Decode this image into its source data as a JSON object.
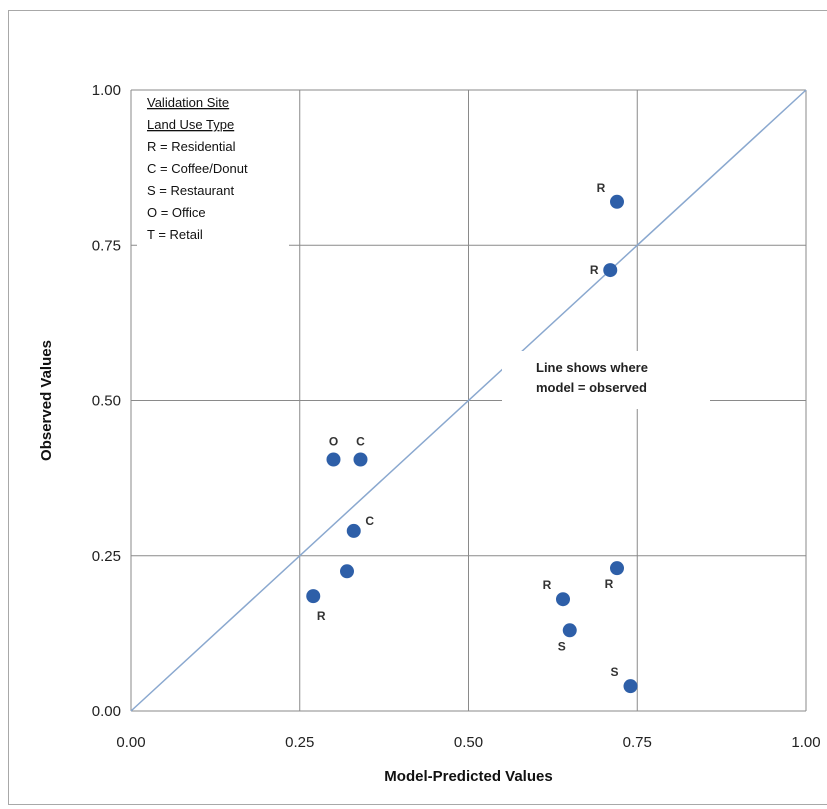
{
  "chart_data": {
    "type": "scatter",
    "xlabel": "Model-Predicted Values",
    "ylabel": "Observed Values",
    "xlim": [
      0,
      1
    ],
    "ylim": [
      0,
      1
    ],
    "x_ticks": [
      "0.00",
      "0.25",
      "0.50",
      "0.75",
      "1.00"
    ],
    "y_ticks": [
      "0.00",
      "0.25",
      "0.50",
      "0.75",
      "1.00"
    ],
    "grid": true,
    "reference_line": "y = x",
    "legend": {
      "placement": "top-left",
      "title_lines": [
        "Validation Site",
        "Land Use Type"
      ],
      "entries": [
        "R = Residential",
        "C = Coffee/Donut",
        "S = Restaurant",
        "O = Office",
        "T = Retail"
      ]
    },
    "annotation": [
      "Line shows where",
      "model = observed"
    ],
    "points": [
      {
        "x": 0.72,
        "y": 0.82,
        "label": "R",
        "label_pos": "upper-left"
      },
      {
        "x": 0.71,
        "y": 0.71,
        "label": "R",
        "label_pos": "left"
      },
      {
        "x": 0.3,
        "y": 0.405,
        "label": "O",
        "label_pos": "above"
      },
      {
        "x": 0.34,
        "y": 0.405,
        "label": "C",
        "label_pos": "above"
      },
      {
        "x": 0.33,
        "y": 0.29,
        "label": "C",
        "label_pos": "upper-right"
      },
      {
        "x": 0.32,
        "y": 0.225,
        "label": "",
        "label_pos": "none"
      },
      {
        "x": 0.27,
        "y": 0.185,
        "label": "R",
        "label_pos": "below"
      },
      {
        "x": 0.72,
        "y": 0.23,
        "label": "R",
        "label_pos": "lower-left"
      },
      {
        "x": 0.64,
        "y": 0.18,
        "label": "R",
        "label_pos": "upper-left"
      },
      {
        "x": 0.65,
        "y": 0.13,
        "label": "S",
        "label_pos": "lower-left"
      },
      {
        "x": 0.74,
        "y": 0.04,
        "label": "S",
        "label_pos": "upper-left"
      }
    ],
    "colors": {
      "point": "#2e5fa8",
      "reference_line": "#8aa8cf",
      "grid": "#8a8a8a"
    }
  }
}
